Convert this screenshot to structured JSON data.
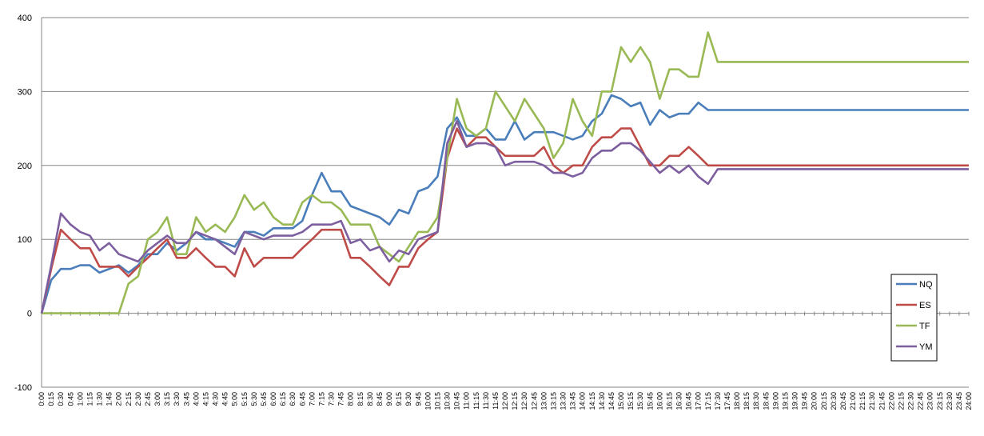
{
  "chart_data": {
    "type": "line",
    "title": "",
    "xlabel": "",
    "ylabel": "",
    "ylim": [
      -100,
      400
    ],
    "yticks": [
      -100,
      0,
      100,
      200,
      300,
      400
    ],
    "grid": "horizontal",
    "legend_position": "right",
    "x": [
      "0:00",
      "0:15",
      "0:30",
      "0:45",
      "1:00",
      "1:15",
      "1:30",
      "1:45",
      "2:00",
      "2:15",
      "2:30",
      "2:45",
      "3:00",
      "3:15",
      "3:30",
      "3:45",
      "4:00",
      "4:15",
      "4:30",
      "4:45",
      "5:00",
      "5:15",
      "5:30",
      "5:45",
      "6:00",
      "6:15",
      "6:30",
      "6:45",
      "7:00",
      "7:15",
      "7:30",
      "7:45",
      "8:00",
      "8:15",
      "8:30",
      "8:45",
      "9:00",
      "9:15",
      "9:30",
      "9:45",
      "10:00",
      "10:15",
      "10:30",
      "10:45",
      "11:00",
      "11:15",
      "11:30",
      "11:45",
      "12:00",
      "12:15",
      "12:30",
      "12:45",
      "13:00",
      "13:15",
      "13:30",
      "13:45",
      "14:00",
      "14:15",
      "14:30",
      "14:45",
      "15:00",
      "15:15",
      "15:30",
      "15:45",
      "16:00",
      "16:15",
      "16:30",
      "16:45",
      "17:00",
      "17:15",
      "17:30",
      "17:45",
      "18:00",
      "18:15",
      "18:30",
      "18:45",
      "19:00",
      "19:15",
      "19:30",
      "19:45",
      "20:00",
      "20:15",
      "20:30",
      "20:45",
      "21:00",
      "21:15",
      "21:30",
      "21:45",
      "22:00",
      "22:15",
      "22:30",
      "22:45",
      "23:00",
      "23:15",
      "23:30",
      "23:45",
      "24:00"
    ],
    "series": [
      {
        "name": "NQ",
        "color": "#4A7EBB",
        "values": [
          0,
          45,
          60,
          60,
          65,
          65,
          55,
          60,
          65,
          55,
          65,
          80,
          80,
          95,
          85,
          95,
          110,
          100,
          100,
          95,
          90,
          110,
          110,
          105,
          115,
          115,
          115,
          125,
          160,
          190,
          165,
          165,
          145,
          140,
          135,
          130,
          120,
          140,
          135,
          165,
          170,
          185,
          250,
          265,
          240,
          240,
          250,
          235,
          235,
          260,
          235,
          245,
          245,
          245,
          240,
          235,
          240,
          260,
          270,
          295,
          290,
          280,
          285,
          255,
          275,
          265,
          270,
          270,
          285,
          275,
          275,
          275,
          275,
          275,
          275,
          275,
          275,
          275,
          275,
          275,
          275,
          275,
          275,
          275,
          275,
          275,
          275,
          275,
          275,
          275,
          275,
          275,
          275,
          275,
          275,
          275,
          275
        ]
      },
      {
        "name": "ES",
        "color": "#BE4B48",
        "values": [
          0,
          60,
          113,
          100,
          88,
          88,
          63,
          63,
          63,
          50,
          63,
          75,
          88,
          100,
          75,
          75,
          88,
          75,
          63,
          63,
          50,
          88,
          63,
          75,
          75,
          75,
          75,
          88,
          100,
          113,
          113,
          113,
          75,
          75,
          63,
          50,
          38,
          63,
          63,
          88,
          100,
          110,
          210,
          250,
          225,
          238,
          238,
          225,
          213,
          213,
          213,
          213,
          225,
          200,
          190,
          200,
          200,
          225,
          238,
          238,
          250,
          250,
          225,
          200,
          200,
          213,
          213,
          225,
          213,
          200,
          200,
          200,
          200,
          200,
          200,
          200,
          200,
          200,
          200,
          200,
          200,
          200,
          200,
          200,
          200,
          200,
          200,
          200,
          200,
          200,
          200,
          200,
          200,
          200,
          200,
          200,
          200
        ]
      },
      {
        "name": "TF",
        "color": "#98B954",
        "values": [
          0,
          0,
          0,
          0,
          0,
          0,
          0,
          0,
          0,
          40,
          50,
          100,
          110,
          130,
          80,
          80,
          130,
          110,
          120,
          110,
          130,
          160,
          140,
          150,
          130,
          120,
          120,
          150,
          160,
          150,
          150,
          140,
          120,
          120,
          120,
          90,
          80,
          70,
          90,
          110,
          110,
          130,
          210,
          290,
          250,
          240,
          250,
          300,
          280,
          260,
          290,
          270,
          250,
          210,
          230,
          290,
          260,
          240,
          300,
          300,
          360,
          340,
          360,
          340,
          290,
          330,
          330,
          320,
          320,
          380,
          340,
          340,
          340,
          340,
          340,
          340,
          340,
          340,
          340,
          340,
          340,
          340,
          340,
          340,
          340,
          340,
          340,
          340,
          340,
          340,
          340,
          340,
          340,
          340,
          340,
          340,
          340
        ]
      },
      {
        "name": "YM",
        "color": "#7D5FA0",
        "values": [
          0,
          65,
          135,
          120,
          110,
          105,
          85,
          95,
          80,
          75,
          70,
          85,
          95,
          105,
          95,
          95,
          110,
          105,
          100,
          90,
          80,
          110,
          105,
          100,
          105,
          105,
          105,
          110,
          120,
          120,
          120,
          125,
          95,
          100,
          85,
          90,
          70,
          85,
          80,
          100,
          105,
          110,
          230,
          260,
          225,
          230,
          230,
          225,
          200,
          205,
          205,
          205,
          200,
          190,
          190,
          185,
          190,
          210,
          220,
          220,
          230,
          230,
          220,
          205,
          190,
          200,
          190,
          200,
          185,
          175,
          195,
          195,
          195,
          195,
          195,
          195,
          195,
          195,
          195,
          195,
          195,
          195,
          195,
          195,
          195,
          195,
          195,
          195,
          195,
          195,
          195,
          195,
          195,
          195,
          195,
          195,
          195
        ]
      }
    ]
  }
}
